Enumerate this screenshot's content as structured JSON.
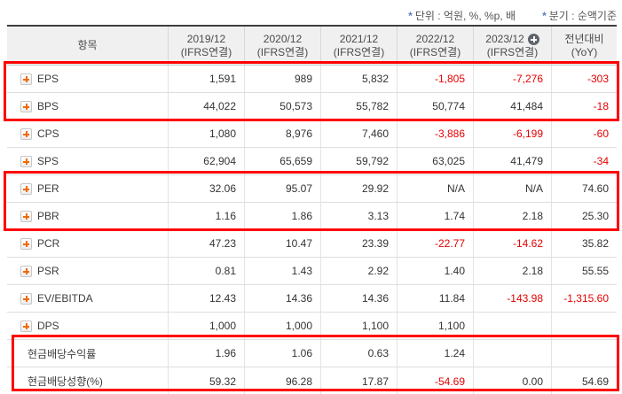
{
  "meta": {
    "star": "*",
    "unit_note": "단위 : 억원, %, %p, 배",
    "basis_note": "분기 : 순액기준"
  },
  "colors": {
    "negative_value": "#e60000",
    "highlight_border": "#ff0000",
    "expand_icon_plus": "#f06a00",
    "header_background": "#f0f0f0"
  },
  "table": {
    "header": {
      "item": "항목",
      "cols": [
        {
          "line1": "2019/12",
          "line2": "(IFRS연결)"
        },
        {
          "line1": "2020/12",
          "line2": "(IFRS연결)"
        },
        {
          "line1": "2021/12",
          "line2": "(IFRS연결)"
        },
        {
          "line1": "2022/12",
          "line2": "(IFRS연결)"
        },
        {
          "line1": "2023/12",
          "line2": "(IFRS연결)",
          "badge": "add-column"
        },
        {
          "line1": "전년대비",
          "line2": "(YoY)"
        }
      ]
    },
    "rows": [
      {
        "label": "EPS",
        "expandable": true,
        "values": [
          "1,591",
          "989",
          "5,832",
          "-1,805",
          "-7,276",
          "-303"
        ]
      },
      {
        "label": "BPS",
        "expandable": true,
        "values": [
          "44,022",
          "50,573",
          "55,782",
          "50,774",
          "41,484",
          "-18"
        ]
      },
      {
        "label": "CPS",
        "expandable": true,
        "values": [
          "1,080",
          "8,976",
          "7,460",
          "-3,886",
          "-6,199",
          "-60"
        ]
      },
      {
        "label": "SPS",
        "expandable": true,
        "values": [
          "62,904",
          "65,659",
          "59,792",
          "63,025",
          "41,479",
          "-34"
        ]
      },
      {
        "label": "PER",
        "expandable": true,
        "values": [
          "32.06",
          "95.07",
          "29.92",
          "N/A",
          "N/A",
          "74.60"
        ]
      },
      {
        "label": "PBR",
        "expandable": true,
        "values": [
          "1.16",
          "1.86",
          "3.13",
          "1.74",
          "2.18",
          "25.30"
        ]
      },
      {
        "label": "PCR",
        "expandable": true,
        "values": [
          "47.23",
          "10.47",
          "23.39",
          "-22.77",
          "-14.62",
          "35.82"
        ]
      },
      {
        "label": "PSR",
        "expandable": true,
        "values": [
          "0.81",
          "1.43",
          "2.92",
          "1.40",
          "2.18",
          "55.55"
        ]
      },
      {
        "label": "EV/EBITDA",
        "expandable": true,
        "values": [
          "12.43",
          "14.36",
          "14.36",
          "11.84",
          "-143.98",
          "-1,315.60"
        ]
      },
      {
        "label": "DPS",
        "expandable": true,
        "values": [
          "1,000",
          "1,000",
          "1,100",
          "1,100",
          "",
          ""
        ]
      },
      {
        "label": "현금배당수익률",
        "expandable": false,
        "values": [
          "1.96",
          "1.06",
          "0.63",
          "1.24",
          "",
          ""
        ]
      },
      {
        "label": "현금배당성향(%)",
        "expandable": false,
        "values": [
          "59.32",
          "96.28",
          "17.87",
          "-54.69",
          "0.00",
          "54.69"
        ]
      }
    ]
  }
}
